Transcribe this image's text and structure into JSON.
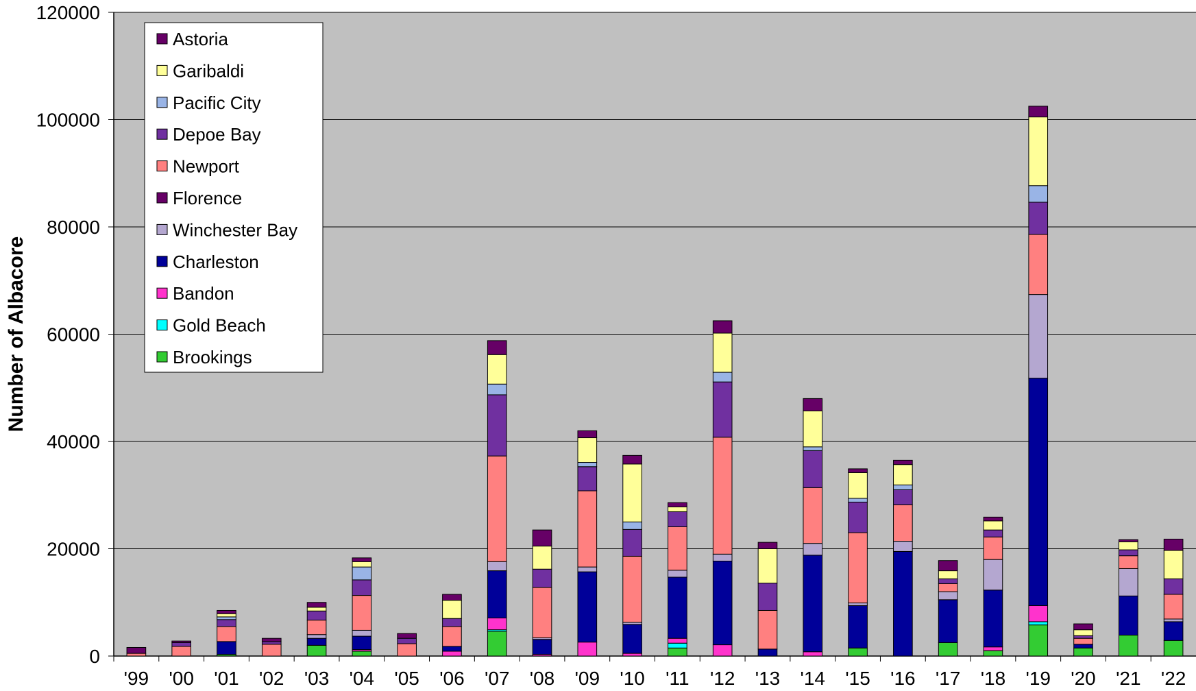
{
  "chart_data": {
    "type": "bar",
    "stacked": true,
    "title": "",
    "xlabel": "",
    "ylabel": "Number of Albacore",
    "ylim": [
      0,
      120000
    ],
    "yticks": [
      "0",
      "20000",
      "40000",
      "60000",
      "80000",
      "100000",
      "120000"
    ],
    "grid": "horizontal",
    "legend_position": "top-left",
    "plot_background": "#C0C0C0",
    "categories": [
      "'99",
      "'00",
      "'01",
      "'02",
      "'03",
      "'04",
      "'05",
      "'06",
      "'07",
      "'08",
      "'09",
      "'10",
      "'11",
      "'12",
      "'13",
      "'14",
      "'15",
      "'16",
      "'17",
      "'18",
      "'19",
      "'20",
      "'21",
      "'22"
    ],
    "series": [
      {
        "name": "Brookings",
        "color": "#33CC33",
        "values": [
          0,
          0,
          300,
          0,
          2000,
          900,
          0,
          0,
          4600,
          0,
          0,
          0,
          1500,
          0,
          0,
          0,
          1500,
          0,
          2500,
          1000,
          5800,
          1500,
          3900,
          2900
        ]
      },
      {
        "name": "Gold Beach",
        "color": "#00FFFF",
        "values": [
          0,
          0,
          0,
          0,
          0,
          0,
          0,
          0,
          300,
          0,
          0,
          0,
          900,
          0,
          0,
          0,
          0,
          0,
          0,
          0,
          600,
          0,
          0,
          0
        ]
      },
      {
        "name": "Bandon",
        "color": "#FF33CC",
        "values": [
          0,
          0,
          0,
          0,
          0,
          300,
          0,
          900,
          2200,
          300,
          2600,
          500,
          900,
          2100,
          0,
          800,
          0,
          0,
          0,
          700,
          3000,
          0,
          0,
          0
        ]
      },
      {
        "name": "Charleston",
        "color": "#000099",
        "values": [
          0,
          0,
          2400,
          0,
          1300,
          2500,
          0,
          900,
          8800,
          2800,
          13100,
          5400,
          11400,
          15600,
          1300,
          18000,
          7900,
          19500,
          8000,
          10600,
          42400,
          700,
          7300,
          3500
        ]
      },
      {
        "name": "Winchester Bay",
        "color": "#B4A7D0",
        "values": [
          0,
          0,
          0,
          0,
          700,
          1100,
          0,
          0,
          1700,
          300,
          900,
          400,
          1300,
          1300,
          0,
          2200,
          500,
          1900,
          1500,
          5700,
          15600,
          0,
          5100,
          500
        ]
      },
      {
        "name": "Florence",
        "color": "#660066",
        "values": [
          0,
          0,
          0,
          0,
          0,
          0,
          0,
          0,
          0,
          0,
          0,
          0,
          0,
          0,
          0,
          0,
          0,
          0,
          0,
          0,
          0,
          0,
          0,
          0
        ]
      },
      {
        "name": "Newport",
        "color": "#FF8080",
        "values": [
          500,
          1800,
          2800,
          2200,
          2700,
          6500,
          2300,
          3700,
          19700,
          9400,
          14200,
          12300,
          8100,
          21800,
          7200,
          10400,
          13100,
          6800,
          1500,
          4200,
          11200,
          1100,
          2400,
          4600
        ]
      },
      {
        "name": "Depoe Bay",
        "color": "#7030A0",
        "values": [
          0,
          700,
          1300,
          500,
          1700,
          2900,
          1000,
          1500,
          11400,
          3400,
          4500,
          5000,
          2800,
          10300,
          5100,
          6900,
          5700,
          2800,
          900,
          1300,
          6000,
          500,
          1100,
          2900
        ]
      },
      {
        "name": "Pacific City",
        "color": "#99B4E6",
        "values": [
          0,
          0,
          500,
          0,
          0,
          2400,
          0,
          0,
          2000,
          0,
          800,
          1400,
          0,
          1800,
          0,
          700,
          700,
          900,
          0,
          0,
          3100,
          0,
          0,
          0
        ]
      },
      {
        "name": "Garibaldi",
        "color": "#FFFF99",
        "values": [
          0,
          0,
          600,
          0,
          700,
          1000,
          0,
          3400,
          5500,
          4300,
          4600,
          10800,
          900,
          7300,
          6400,
          6700,
          4800,
          3800,
          1500,
          1700,
          12800,
          1100,
          1500,
          5300
        ]
      },
      {
        "name": "Astoria",
        "color": "#660066",
        "values": [
          1100,
          300,
          600,
          600,
          900,
          700,
          900,
          1100,
          2600,
          3000,
          1300,
          1600,
          800,
          2300,
          1200,
          2300,
          700,
          800,
          1900,
          700,
          2000,
          1100,
          400,
          2100
        ]
      }
    ],
    "legend_order": [
      "Astoria",
      "Garibaldi",
      "Pacific City",
      "Depoe Bay",
      "Newport",
      "Florence",
      "Winchester Bay",
      "Charleston",
      "Bandon",
      "Gold Beach",
      "Brookings"
    ]
  }
}
